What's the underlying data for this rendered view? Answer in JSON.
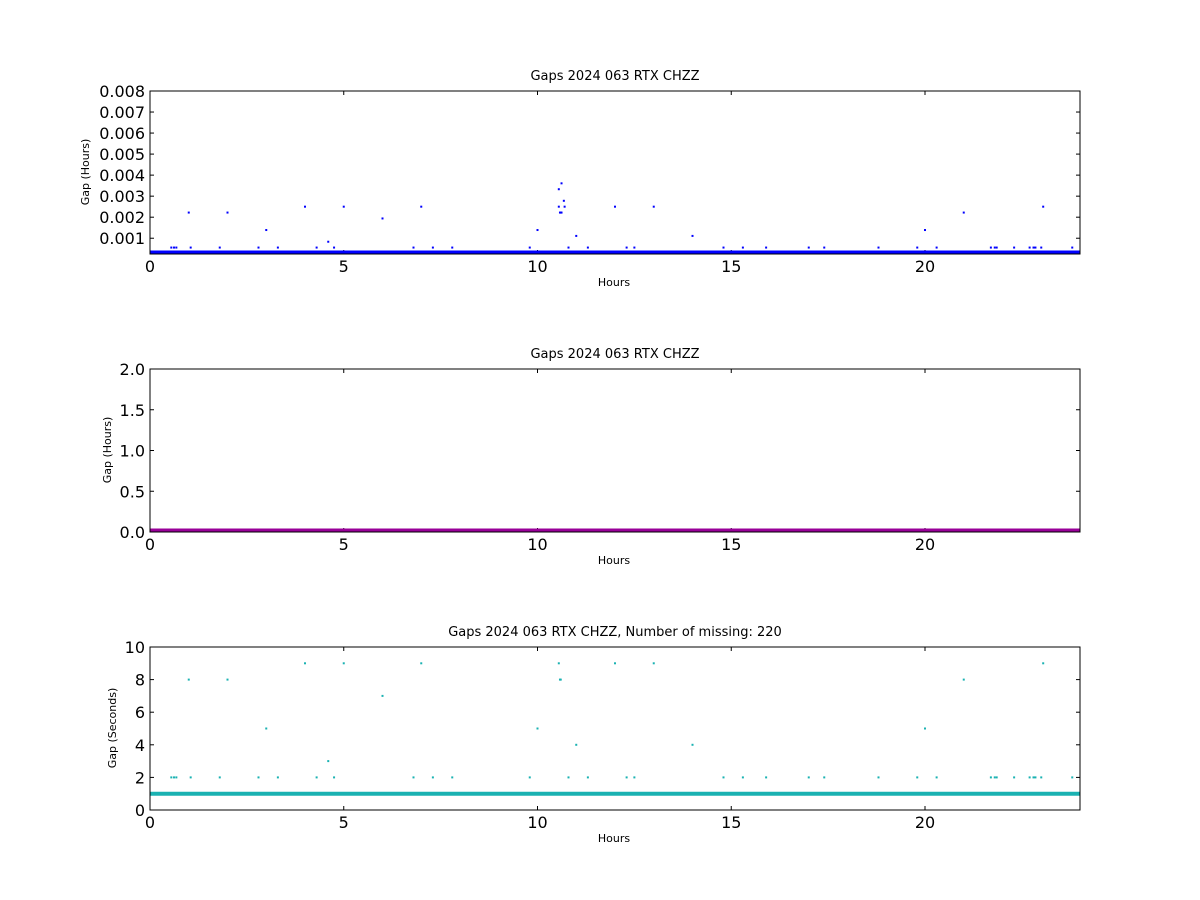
{
  "figure": {
    "background": "#ffffff"
  },
  "chart_data": [
    {
      "type": "scatter",
      "title": "Gaps 2024 063 RTX  CHZZ",
      "xlabel": "Hours",
      "ylabel": "Gap (Hours)",
      "xlim": [
        0,
        24
      ],
      "ylim": [
        0.00025,
        0.008
      ],
      "xticks": [
        0,
        5,
        10,
        15,
        20
      ],
      "yticks": [
        0.001,
        0.002,
        0.003,
        0.004,
        0.005,
        0.006,
        0.007,
        0.008
      ],
      "ytick_labels": [
        "0.001",
        "0.002",
        "0.003",
        "0.004",
        "0.005",
        "0.006",
        "0.007",
        "0.008"
      ],
      "color": "#0000ff",
      "baseline": 0.000278,
      "series": [
        {
          "x": [
            0.55,
            0.62,
            0.68,
            1.0,
            1.05,
            1.8,
            2.0,
            2.8,
            3.0,
            3.3,
            4.0,
            4.3,
            4.6,
            4.75,
            5.0,
            6.0,
            6.8,
            7.0,
            7.3,
            7.8,
            9.8,
            10.0,
            10.55,
            10.58,
            10.6,
            10.62,
            10.7,
            10.8,
            11.0,
            11.3,
            12.0,
            12.3,
            12.5,
            13.0,
            14.0,
            14.8,
            15.3,
            15.9,
            17.0,
            17.4,
            18.8,
            19.8,
            20.0,
            20.3,
            21.0,
            21.7,
            21.8,
            21.85,
            22.3,
            22.7,
            22.8,
            22.85,
            23.0,
            23.05,
            23.8
          ],
          "y": [
            0.000556,
            0.000556,
            0.000556,
            0.00222,
            0.000556,
            0.000556,
            0.00222,
            0.000556,
            0.00139,
            0.000556,
            0.0025,
            0.000556,
            0.000833,
            0.000556,
            0.0025,
            0.00194,
            0.000556,
            0.0025,
            0.000556,
            0.000556,
            0.000556,
            0.00139,
            0.0025,
            0.00222,
            0.00222,
            0.00222,
            0.0025,
            0.000556,
            0.00111,
            0.000556,
            0.0025,
            0.000556,
            0.000556,
            0.0025,
            0.00111,
            0.000556,
            0.000556,
            0.000556,
            0.000556,
            0.000556,
            0.000556,
            0.000556,
            0.00139,
            0.000556,
            0.00222,
            0.000556,
            0.000556,
            0.000556,
            0.000556,
            0.000556,
            0.000556,
            0.000556,
            0.000556,
            0.0025,
            0.000556
          ]
        },
        {
          "x": [
            10.55,
            10.62,
            10.68
          ],
          "y": [
            0.00333,
            0.00361,
            0.00278
          ]
        }
      ]
    },
    {
      "type": "scatter",
      "title": "Gaps 2024 063 RTX  CHZZ",
      "xlabel": "Hours",
      "ylabel": "Gap (Hours)",
      "xlim": [
        0,
        24
      ],
      "ylim": [
        0,
        2.0
      ],
      "xticks": [
        0,
        5,
        10,
        15,
        20
      ],
      "yticks": [
        0.0,
        0.5,
        1.0,
        1.5,
        2.0
      ],
      "ytick_labels": [
        "0.0",
        "0.5",
        "1.0",
        "1.5",
        "2.0"
      ],
      "color": "#990099",
      "baseline": 0.0
    },
    {
      "type": "scatter",
      "title": "Gaps 2024 063 RTX  CHZZ, Number of missing: 220",
      "xlabel": "Hours",
      "ylabel": "Gap (Seconds)",
      "xlim": [
        0,
        24
      ],
      "ylim": [
        0,
        10
      ],
      "xticks": [
        0,
        5,
        10,
        15,
        20
      ],
      "yticks": [
        0,
        2,
        4,
        6,
        8,
        10
      ],
      "ytick_labels": [
        "0",
        "2",
        "4",
        "6",
        "8",
        "10"
      ],
      "color": "#1ab2b2",
      "baseline": 1.0,
      "series": [
        {
          "x": [
            0.55,
            0.62,
            0.68,
            1.0,
            1.05,
            1.8,
            2.0,
            2.8,
            3.0,
            3.3,
            4.0,
            4.3,
            4.6,
            4.75,
            5.0,
            6.0,
            6.8,
            7.0,
            7.3,
            7.8,
            9.8,
            10.0,
            10.55,
            10.58,
            10.6,
            10.8,
            11.0,
            11.3,
            12.0,
            12.3,
            12.5,
            13.0,
            14.0,
            14.8,
            15.3,
            15.9,
            17.0,
            17.4,
            18.8,
            19.8,
            20.0,
            20.3,
            21.0,
            21.7,
            21.8,
            21.85,
            22.3,
            22.7,
            22.8,
            22.85,
            23.0,
            23.05,
            23.8
          ],
          "y": [
            2,
            2,
            2,
            8,
            2,
            2,
            8,
            2,
            5,
            2,
            9,
            2,
            3,
            2,
            9,
            7,
            2,
            9,
            2,
            2,
            2,
            5,
            9,
            8,
            8,
            2,
            4,
            2,
            9,
            2,
            2,
            9,
            4,
            2,
            2,
            2,
            2,
            2,
            2,
            2,
            5,
            2,
            8,
            2,
            2,
            2,
            2,
            2,
            2,
            2,
            2,
            9,
            2
          ]
        }
      ]
    }
  ]
}
